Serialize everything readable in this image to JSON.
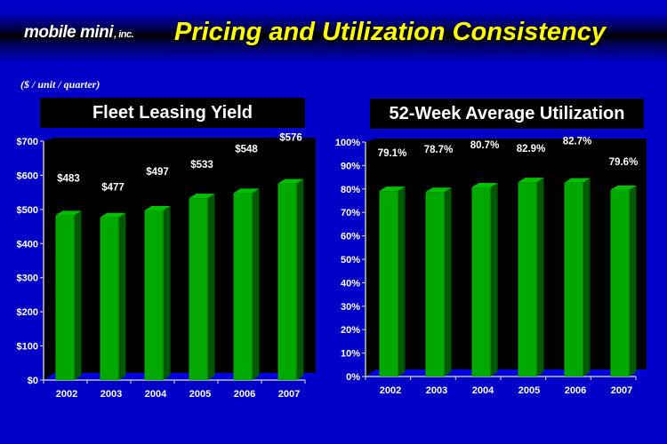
{
  "header": {
    "logo_text": "mobile mini",
    "logo_suffix": ", inc.",
    "title": "Pricing and Utilization Consistency",
    "subtitle": "($ / unit / quarter)"
  },
  "colors": {
    "background": "#0000c8",
    "title": "#ffff00",
    "bar_front": "#00a800",
    "bar_top": "#00c000",
    "bar_side": "#005800",
    "plot_wall": "#000000"
  },
  "chart_data": [
    {
      "type": "bar",
      "title": "Fleet Leasing Yield",
      "categories": [
        "2002",
        "2003",
        "2004",
        "2005",
        "2006",
        "2007"
      ],
      "values": [
        483,
        477,
        497,
        533,
        548,
        576
      ],
      "data_labels": [
        "$483",
        "$477",
        "$497",
        "$533",
        "$548",
        "$576"
      ],
      "ylim": [
        0,
        700
      ],
      "yticks": [
        0,
        100,
        200,
        300,
        400,
        500,
        600,
        700
      ],
      "ytick_labels": [
        "$0",
        "$100",
        "$200",
        "$300",
        "$400",
        "$500",
        "$600",
        "$700"
      ],
      "xlabel": "",
      "ylabel": "",
      "grid": false
    },
    {
      "type": "bar",
      "title": "52-Week Average Utilization",
      "categories": [
        "2002",
        "2003",
        "2004",
        "2005",
        "2006",
        "2007"
      ],
      "values": [
        79.1,
        78.7,
        80.7,
        82.9,
        82.7,
        79.6
      ],
      "data_labels": [
        "79.1%",
        "78.7%",
        "80.7%",
        "82.9%",
        "82.7%",
        "79.6%"
      ],
      "ylim": [
        0,
        100
      ],
      "yticks": [
        0,
        10,
        20,
        30,
        40,
        50,
        60,
        70,
        80,
        90,
        100
      ],
      "ytick_labels": [
        "0%",
        "10%",
        "20%",
        "30%",
        "40%",
        "50%",
        "60%",
        "70%",
        "80%",
        "90%",
        "100%"
      ],
      "xlabel": "",
      "ylabel": "",
      "grid": false
    }
  ]
}
